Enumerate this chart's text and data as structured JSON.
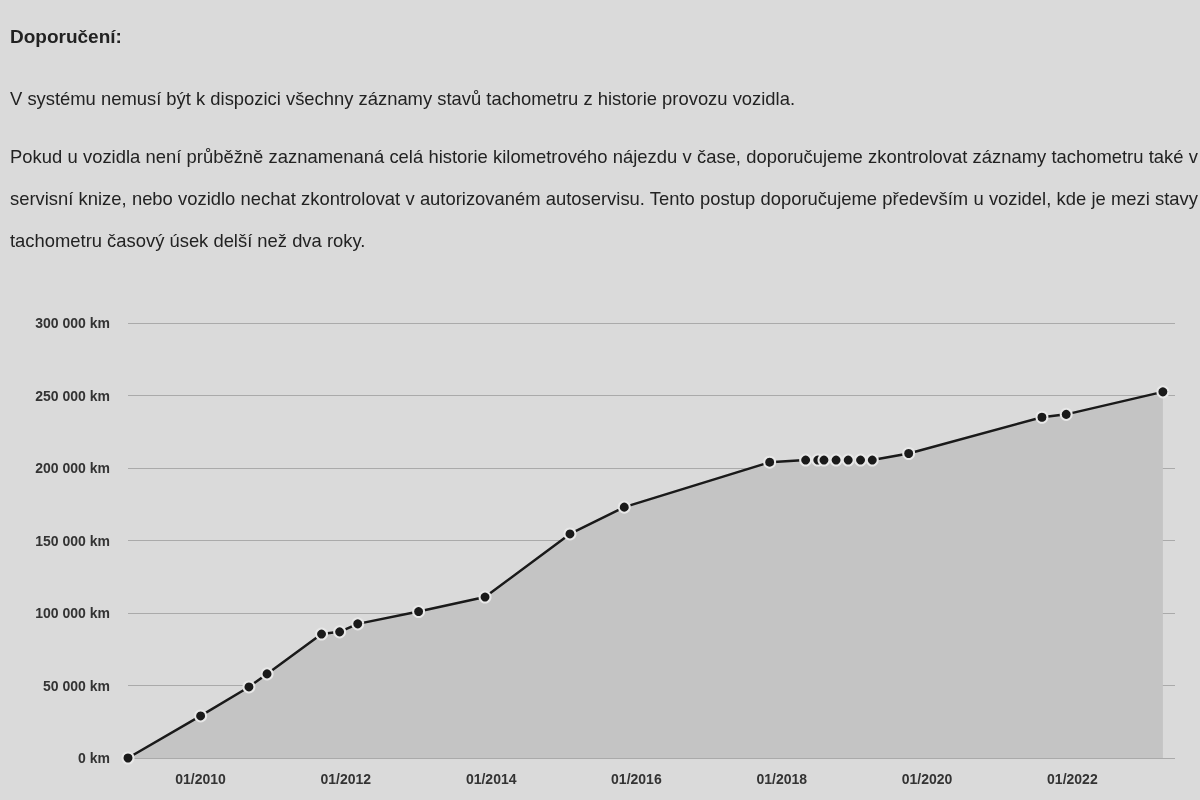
{
  "chart_data": {
    "type": "area",
    "title": "Doporučení:",
    "annotations": [
      "V systému nemusí být k dispozici všechny záznamy stavů tachometru z historie provozu vozidla.",
      "Pokud u vozidla není průběžně zaznamenaná celá historie kilometrového nájezdu v čase, doporučujeme zkontrolovat záznamy tachometru také v servisní knize, nebo vozidlo nechat zkontrolovat v autorizovaném autoservisu. Tento postup doporučujeme především u vozidel, kde je mezi stavy tachometru časový úsek delší než dva roky."
    ],
    "x": [
      "2009-01",
      "2010-01",
      "2010-09",
      "2010-12",
      "2011-09",
      "2011-12",
      "2012-03",
      "2013-01",
      "2013-12",
      "2015-02",
      "2015-11",
      "2017-11",
      "2018-05",
      "2018-07",
      "2018-08",
      "2018-10",
      "2018-12",
      "2019-02",
      "2019-04",
      "2019-10",
      "2021-08",
      "2021-12",
      "2023-04"
    ],
    "series": [
      {
        "color": "#1a1a1a",
        "values": [
          0,
          29000,
          49000,
          58000,
          85500,
          87000,
          92500,
          101000,
          111000,
          154500,
          173000,
          204000,
          205500,
          205500,
          205500,
          205500,
          205500,
          205500,
          205500,
          210000,
          235000,
          237000,
          252500
        ]
      }
    ],
    "xlim": [
      "2009-01",
      "2023-06"
    ],
    "xticks": [
      {
        "value": "2010-01",
        "label": "01/2010"
      },
      {
        "value": "2012-01",
        "label": "01/2012"
      },
      {
        "value": "2014-01",
        "label": "01/2014"
      },
      {
        "value": "2016-01",
        "label": "01/2016"
      },
      {
        "value": "2018-01",
        "label": "01/2018"
      },
      {
        "value": "2020-01",
        "label": "01/2020"
      },
      {
        "value": "2022-01",
        "label": "01/2022"
      }
    ],
    "ylim": [
      0,
      300000
    ],
    "yticks": [
      {
        "value": 0,
        "label": "0 km"
      },
      {
        "value": 50000,
        "label": "50 000 km"
      },
      {
        "value": 100000,
        "label": "100 000 km"
      },
      {
        "value": 150000,
        "label": "150 000 km"
      },
      {
        "value": 200000,
        "label": "200 000 km"
      },
      {
        "value": 250000,
        "label": "250 000 km"
      },
      {
        "value": 300000,
        "label": "300 000 km"
      }
    ],
    "grid": "y",
    "marker": "circle",
    "line_style": "solid"
  }
}
